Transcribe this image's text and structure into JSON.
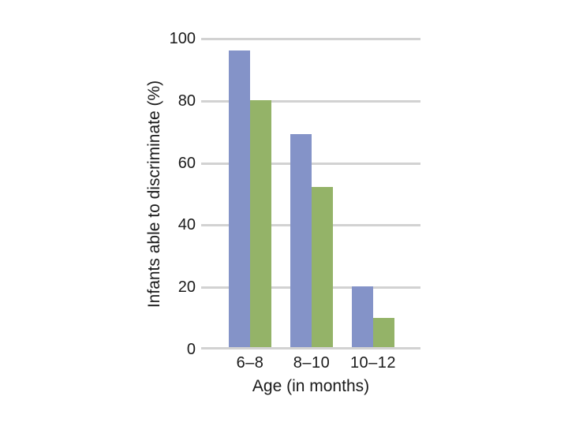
{
  "page": {
    "background_color": "#ffffff",
    "text_color": "#1a1a1a"
  },
  "chart_data": {
    "type": "bar",
    "title": "",
    "categories": [
      "6–8",
      "8–10",
      "10–12"
    ],
    "series": [
      {
        "name": "blue-series",
        "color": "#8493c8",
        "values": [
          96,
          69,
          20
        ]
      },
      {
        "name": "green-series",
        "color": "#94b368",
        "values": [
          80,
          52,
          10
        ]
      }
    ],
    "xlabel": "Age (in months)",
    "ylabel": "Infants able to discriminate (%)",
    "ylim": [
      0,
      100
    ],
    "yticks": [
      0,
      20,
      40,
      60,
      80,
      100
    ],
    "grid": "horizontal",
    "gridline_color": "#d2d2d2",
    "legend": "none",
    "background": "#ffffff"
  }
}
